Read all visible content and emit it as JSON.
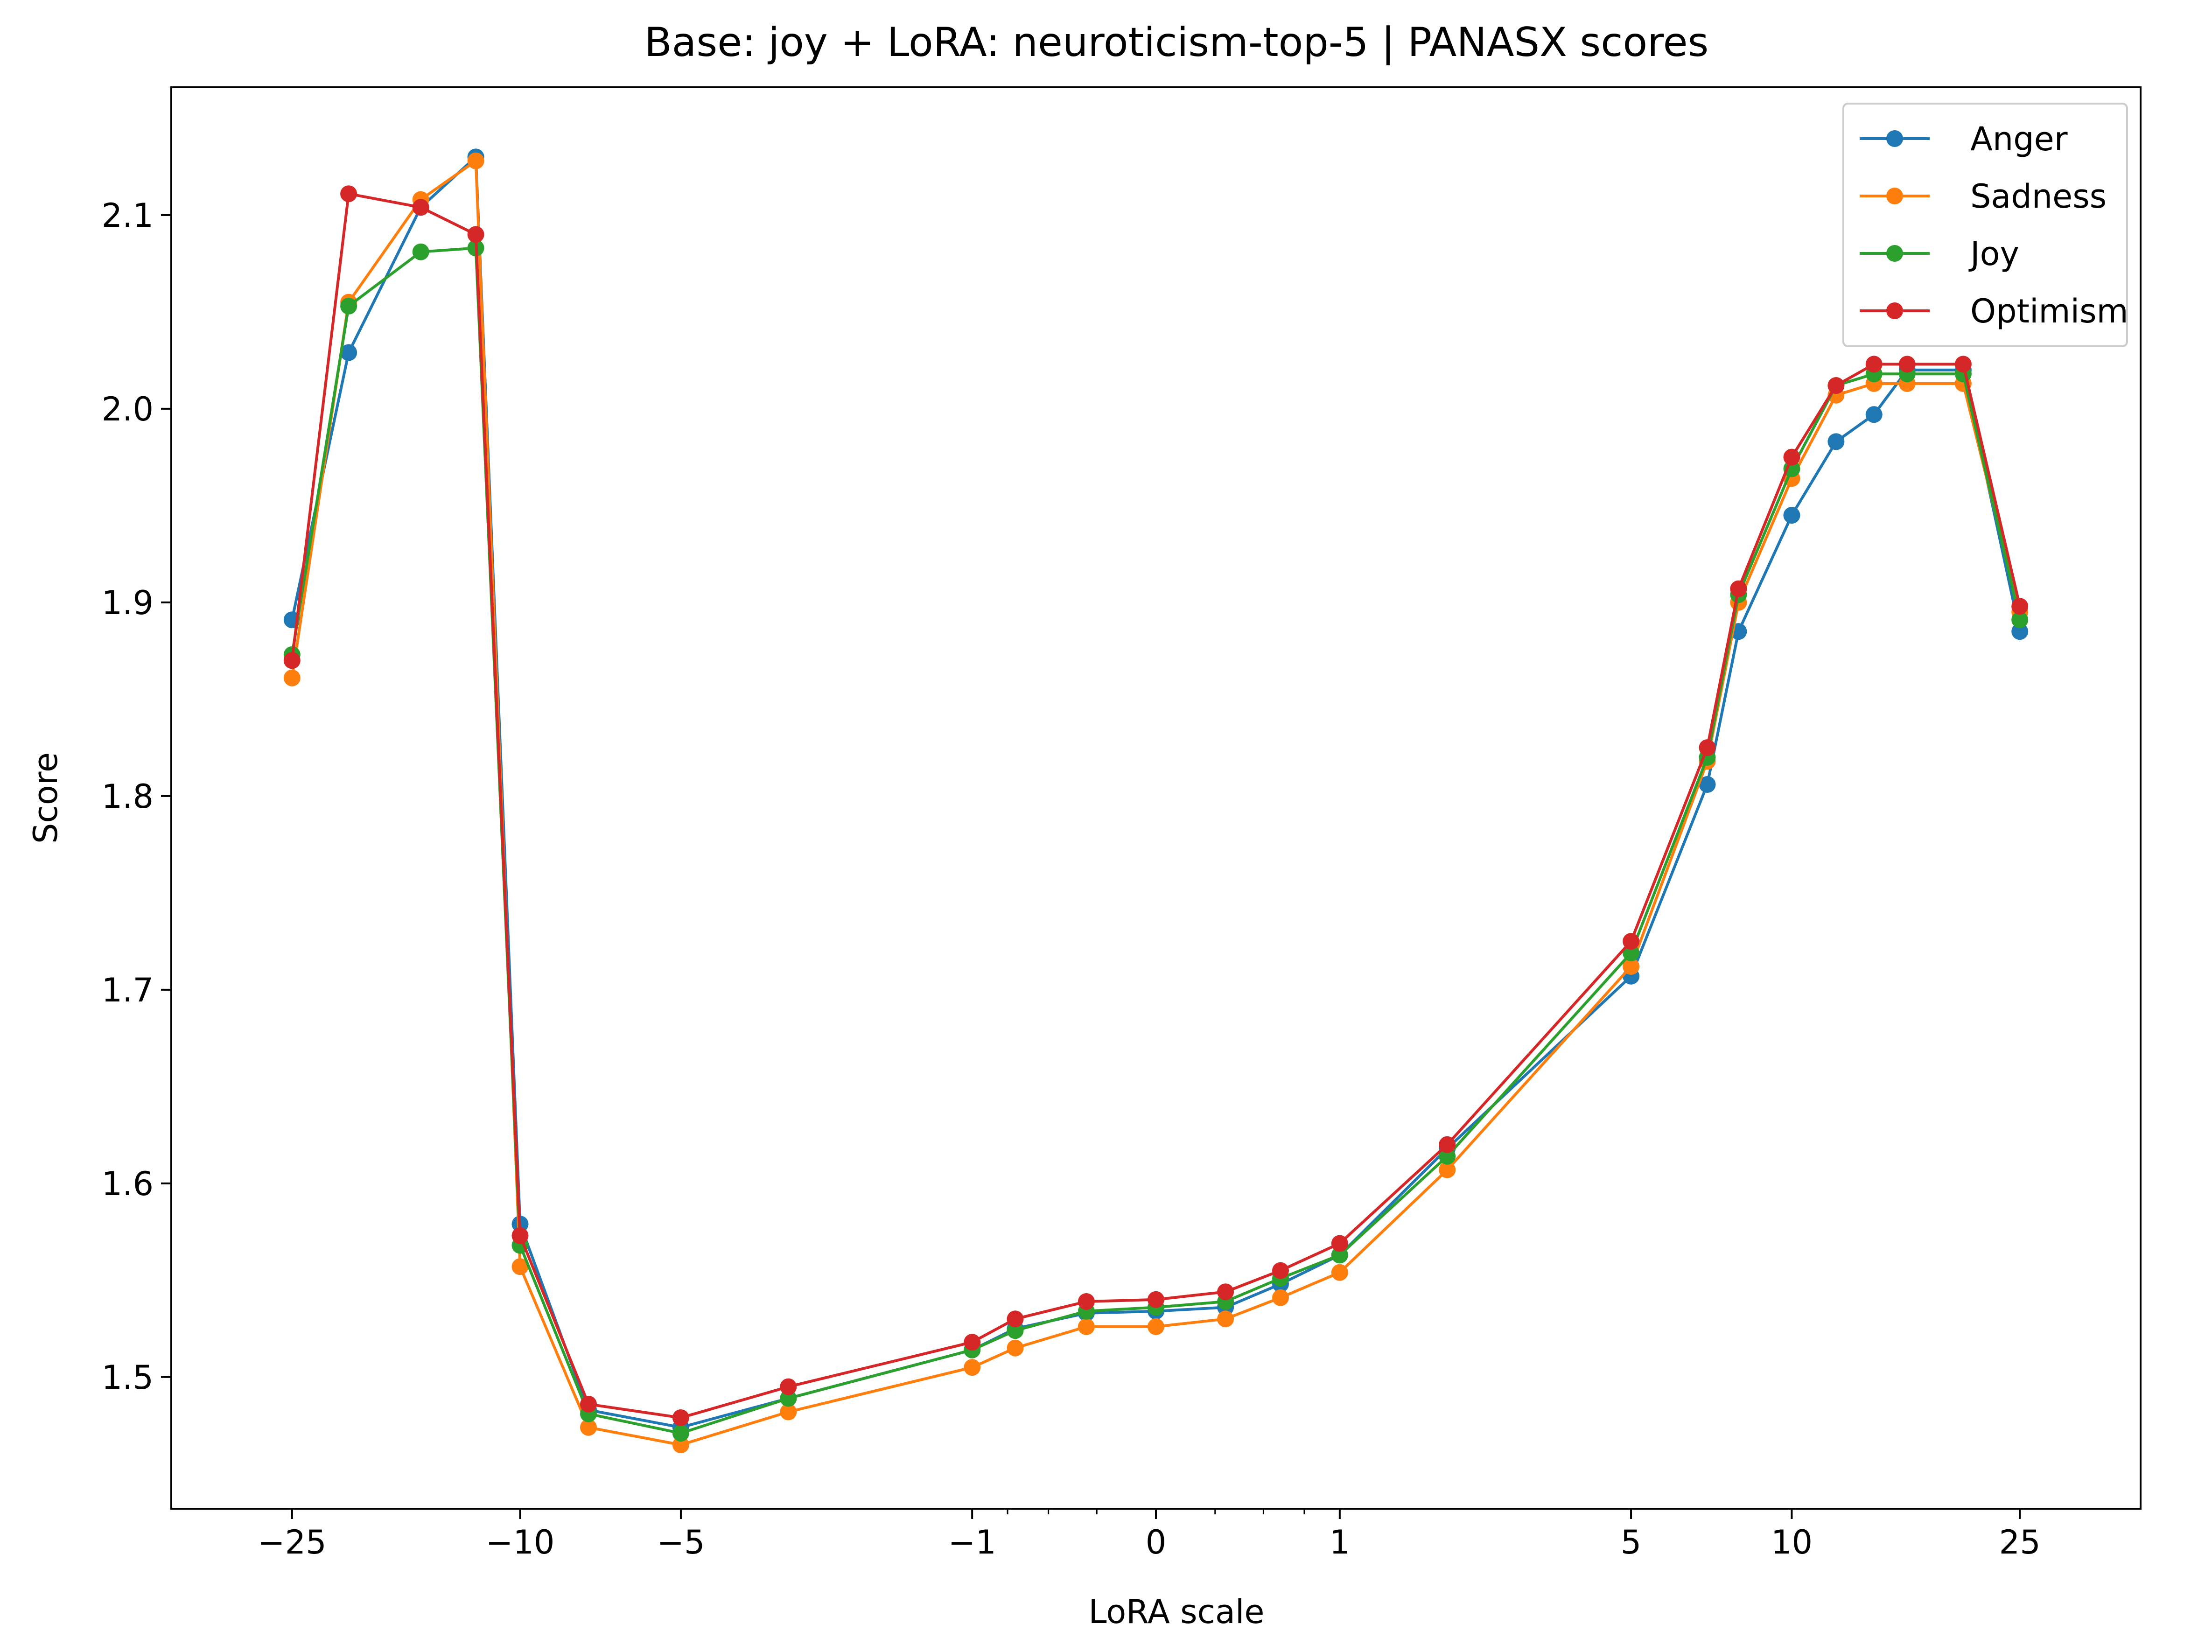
{
  "chart_data": {
    "type": "line",
    "title": "Base: joy + LoRA: neuroticism-top-5 | PANASX scores",
    "xlabel": "LoRA scale",
    "ylabel": "Score",
    "x_scale": "symlog",
    "xlim": [
      -40,
      40
    ],
    "ylim": [
      1.432,
      2.166
    ],
    "grid": false,
    "legend_position": "top-right",
    "x_ticks": [
      {
        "value": -25,
        "label": "−25"
      },
      {
        "value": -10,
        "label": "−10"
      },
      {
        "value": -5,
        "label": "−5"
      },
      {
        "value": -1,
        "label": "−1"
      },
      {
        "value": 0,
        "label": "0"
      },
      {
        "value": 1,
        "label": "1"
      },
      {
        "value": 5,
        "label": "5"
      },
      {
        "value": 10,
        "label": "10"
      },
      {
        "value": 25,
        "label": "25"
      }
    ],
    "y_ticks": [
      {
        "value": 1.5,
        "label": "1.5"
      },
      {
        "value": 1.6,
        "label": "1.6"
      },
      {
        "value": 1.7,
        "label": "1.7"
      },
      {
        "value": 1.8,
        "label": "1.8"
      },
      {
        "value": 1.9,
        "label": "1.9"
      },
      {
        "value": 2.0,
        "label": "2.0"
      },
      {
        "value": 2.1,
        "label": "2.1"
      }
    ],
    "x": [
      -25,
      -20,
      -15,
      -12,
      -10,
      -7.5,
      -5,
      -3,
      -1,
      -0.7,
      -0.3,
      0,
      0.3,
      0.6,
      1,
      2,
      5,
      7,
      8,
      10,
      12,
      14,
      16,
      20,
      25
    ],
    "series": [
      {
        "name": "Anger",
        "color": "#1f77b4",
        "values": [
          1.891,
          2.029,
          2.104,
          2.13,
          1.579,
          1.483,
          1.474,
          1.489,
          1.514,
          1.525,
          1.533,
          1.534,
          1.536,
          1.548,
          1.563,
          1.618,
          1.707,
          1.806,
          1.885,
          1.945,
          1.983,
          1.997,
          2.02,
          2.02,
          1.885
        ]
      },
      {
        "name": "Sadness",
        "color": "#ff7f0e",
        "values": [
          1.861,
          2.055,
          2.108,
          2.128,
          1.557,
          1.474,
          1.465,
          1.482,
          1.505,
          1.515,
          1.526,
          1.526,
          1.53,
          1.541,
          1.554,
          1.607,
          1.712,
          1.818,
          1.9,
          1.964,
          2.007,
          2.013,
          2.013,
          2.013,
          1.895
        ]
      },
      {
        "name": "Joy",
        "color": "#2ca02c",
        "values": [
          1.873,
          2.053,
          2.081,
          2.083,
          1.568,
          1.481,
          1.471,
          1.489,
          1.514,
          1.524,
          1.534,
          1.536,
          1.539,
          1.551,
          1.563,
          1.614,
          1.719,
          1.82,
          1.904,
          1.969,
          2.012,
          2.018,
          2.018,
          2.018,
          1.891
        ]
      },
      {
        "name": "Optimism",
        "color": "#d62728",
        "values": [
          1.87,
          2.111,
          2.104,
          2.09,
          1.573,
          1.486,
          1.479,
          1.495,
          1.518,
          1.53,
          1.539,
          1.54,
          1.544,
          1.555,
          1.569,
          1.62,
          1.725,
          1.825,
          1.907,
          1.975,
          2.012,
          2.023,
          2.023,
          2.023,
          1.898
        ]
      }
    ]
  }
}
